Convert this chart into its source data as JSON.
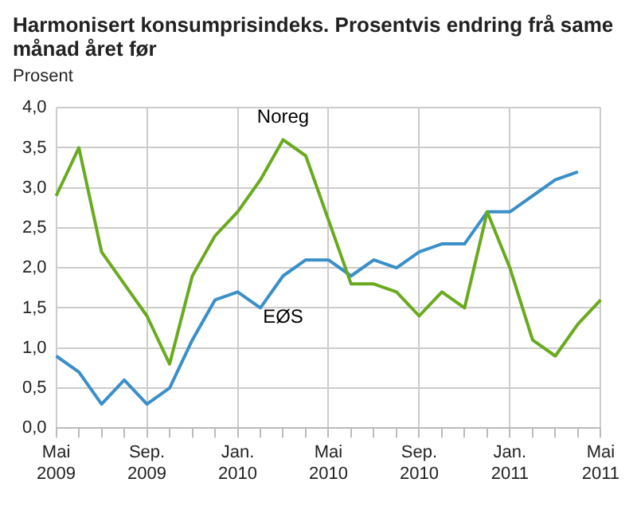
{
  "chart_data": {
    "type": "line",
    "title": "Harmonisert konsumprisindeks. Prosentvis endring frå same månad året før",
    "ylabel": "Prosent",
    "categories": [
      "Mai 2009",
      null,
      null,
      null,
      "Sep. 2009",
      null,
      null,
      null,
      "Jan. 2010",
      null,
      null,
      null,
      "Mai 2010",
      null,
      null,
      null,
      "Sep. 2010",
      null,
      null,
      null,
      "Jan. 2011",
      null,
      null,
      null,
      "Mai 2011"
    ],
    "series": [
      {
        "name": "Noreg",
        "color": "#6aaa1e",
        "values": [
          2.9,
          3.5,
          2.2,
          1.8,
          1.4,
          0.8,
          1.9,
          2.4,
          2.7,
          3.1,
          3.6,
          3.4,
          2.6,
          1.8,
          1.8,
          1.7,
          1.4,
          1.7,
          1.5,
          2.7,
          2.0,
          1.1,
          0.9,
          1.3,
          1.6
        ]
      },
      {
        "name": "EØS",
        "color": "#3a8fc8",
        "values": [
          0.9,
          0.7,
          0.3,
          0.6,
          0.3,
          0.5,
          1.1,
          1.6,
          1.7,
          1.5,
          1.9,
          2.1,
          2.1,
          1.9,
          2.1,
          2.0,
          2.2,
          2.3,
          2.3,
          2.7,
          2.7,
          2.9,
          3.1,
          3.2,
          null
        ]
      }
    ],
    "ylim": [
      0,
      4
    ],
    "yticks": [
      {
        "value": 0,
        "label": "0,0"
      },
      {
        "value": 0.5,
        "label": "0,5"
      },
      {
        "value": 1,
        "label": "1,0"
      },
      {
        "value": 1.5,
        "label": "1,5"
      },
      {
        "value": 2,
        "label": "2,0"
      },
      {
        "value": 2.5,
        "label": "2,5"
      },
      {
        "value": 3,
        "label": "3,0"
      },
      {
        "value": 3.5,
        "label": "3,5"
      },
      {
        "value": 4,
        "label": "4,0"
      }
    ],
    "grid": true,
    "legend": false,
    "marker": "none",
    "line_style": "solid"
  }
}
